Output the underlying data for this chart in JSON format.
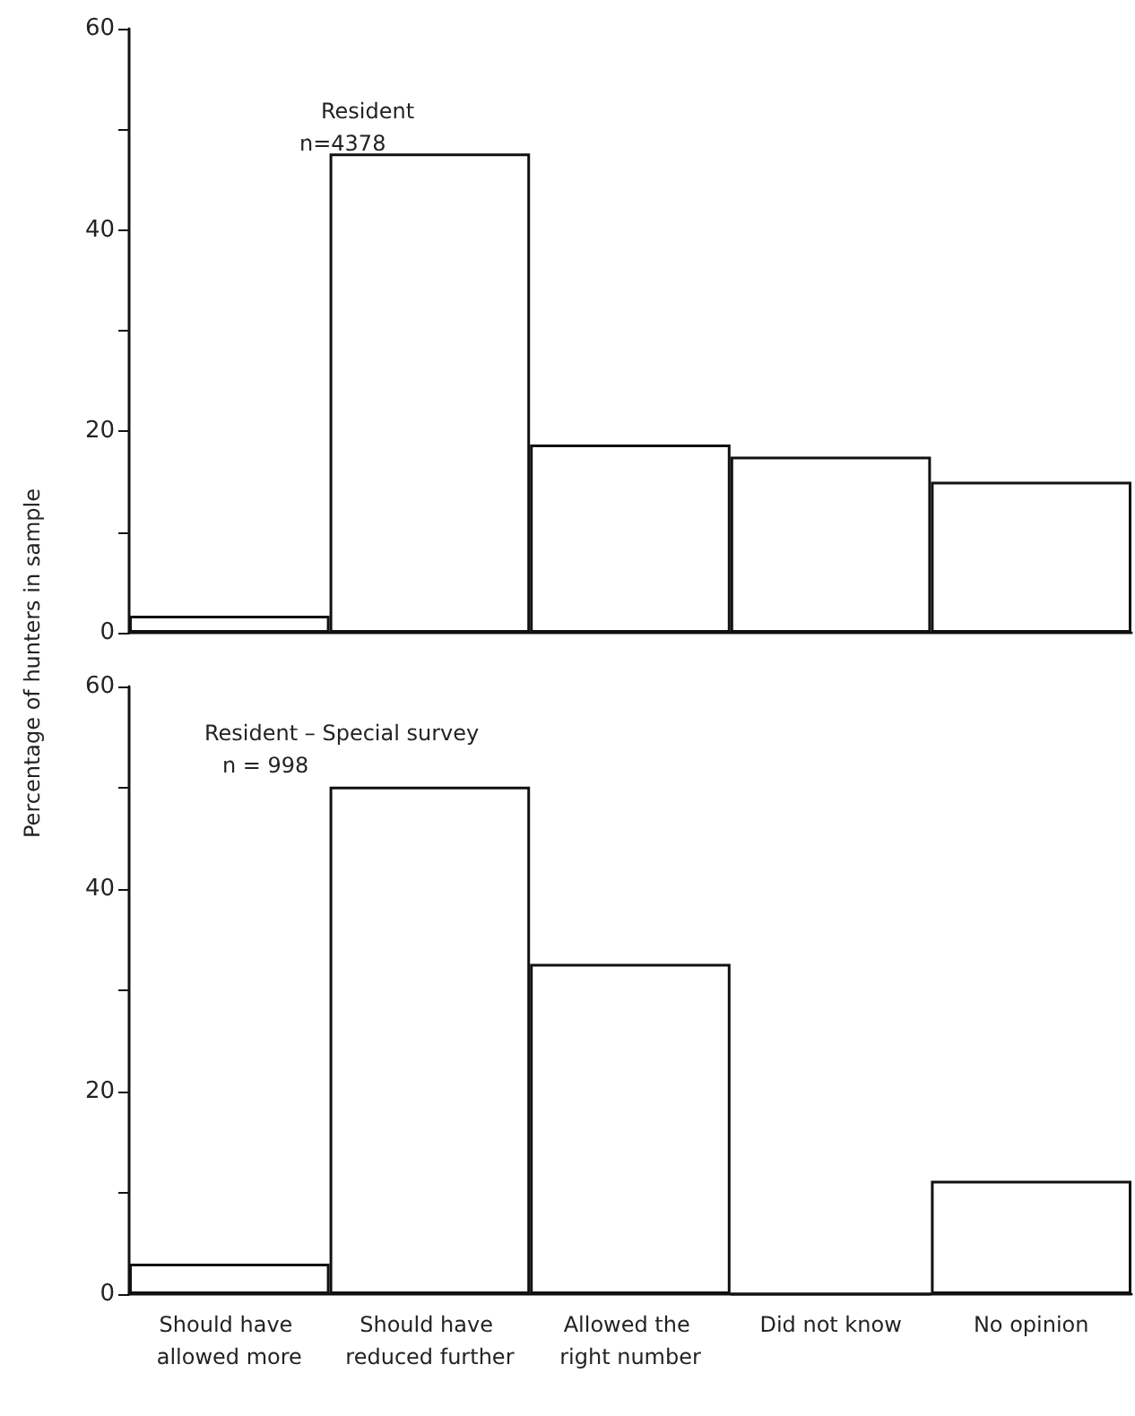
{
  "chart_data": [
    {
      "type": "bar",
      "ylabel": "Percentage of hunters in sample",
      "annotations": [
        "Resident",
        "n=4378"
      ],
      "categories": [
        null,
        null,
        null,
        null,
        null
      ],
      "values": [
        1.7,
        47.6,
        18.7,
        17.5,
        15.0
      ],
      "color": "#ffffff",
      "ylim": [
        0,
        60
      ],
      "yticks": [
        0,
        {
          "value": 10,
          "label": null
        },
        20,
        {
          "value": 30,
          "label": null
        },
        40,
        {
          "value": 50,
          "label": null
        },
        60
      ],
      "tick_labels": "y",
      "grid": false
    },
    {
      "type": "bar",
      "annotations": [
        "Resident – Special survey",
        "n = 998"
      ],
      "categories": [
        "Should have allowed more",
        "Should have reduced further",
        "Allowed the right number",
        "Did not know",
        "No opinion"
      ],
      "values": [
        3.0,
        50.1,
        32.6,
        0,
        11.2
      ],
      "color": "#ffffff",
      "ylim": [
        0,
        60
      ],
      "yticks": [
        0,
        {
          "value": 10,
          "label": null
        },
        20,
        {
          "value": 30,
          "label": null
        },
        40,
        {
          "value": 50,
          "label": null
        },
        60
      ],
      "grid": false
    }
  ]
}
